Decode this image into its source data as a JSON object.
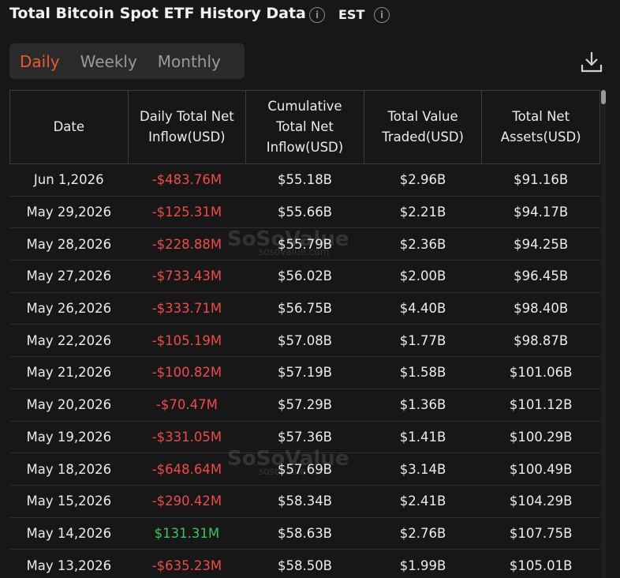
{
  "header": {
    "title": "Total Bitcoin Spot ETF History Data",
    "timezone": "EST"
  },
  "tabs": [
    "Daily",
    "Weekly",
    "Monthly"
  ],
  "active_tab": 0,
  "watermark": {
    "name": "SoSoValue",
    "url": "sosovalue.com"
  },
  "table": {
    "columns": [
      [
        "Date"
      ],
      [
        "Daily Total Net",
        "Inflow(USD)"
      ],
      [
        "Cumulative",
        "Total Net",
        "Inflow(USD)"
      ],
      [
        "Total Value",
        "Traded(USD)"
      ],
      [
        "Total Net",
        "Assets(USD)"
      ]
    ],
    "rows": [
      [
        "Jun 1,2026",
        "-$483.76M",
        "$55.18B",
        "$2.96B",
        "$91.16B"
      ],
      [
        "May 29,2026",
        "-$125.31M",
        "$55.66B",
        "$2.21B",
        "$94.17B"
      ],
      [
        "May 28,2026",
        "-$228.88M",
        "$55.79B",
        "$2.36B",
        "$94.25B"
      ],
      [
        "May 27,2026",
        "-$733.43M",
        "$56.02B",
        "$2.00B",
        "$96.45B"
      ],
      [
        "May 26,2026",
        "-$333.71M",
        "$56.75B",
        "$4.40B",
        "$98.40B"
      ],
      [
        "May 22,2026",
        "-$105.19M",
        "$57.08B",
        "$1.77B",
        "$98.87B"
      ],
      [
        "May 21,2026",
        "-$100.82M",
        "$57.19B",
        "$1.58B",
        "$101.06B"
      ],
      [
        "May 20,2026",
        "-$70.47M",
        "$57.29B",
        "$1.36B",
        "$101.12B"
      ],
      [
        "May 19,2026",
        "-$331.05M",
        "$57.36B",
        "$1.41B",
        "$100.29B"
      ],
      [
        "May 18,2026",
        "-$648.64M",
        "$57.69B",
        "$3.14B",
        "$100.49B"
      ],
      [
        "May 15,2026",
        "-$290.42M",
        "$58.34B",
        "$2.41B",
        "$104.29B"
      ],
      [
        "May 14,2026",
        "$131.31M",
        "$58.63B",
        "$2.76B",
        "$107.75B"
      ],
      [
        "May 13,2026",
        "-$635.23M",
        "$58.50B",
        "$1.99B",
        "$105.01B"
      ]
    ]
  }
}
